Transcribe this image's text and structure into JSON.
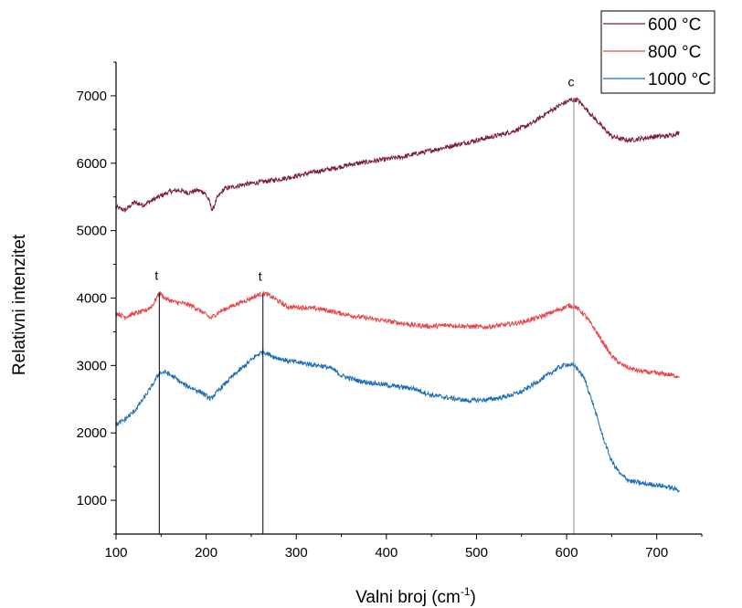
{
  "chart_data": {
    "type": "line",
    "xlabel": "Valni broj (cm",
    "xlabel_sup": "-1",
    "xlabel_close": ")",
    "ylabel": "Relativni intenzitet",
    "xlim": [
      100,
      750
    ],
    "ylim": [
      500,
      7500
    ],
    "xticks": [
      100,
      200,
      300,
      400,
      500,
      600,
      700
    ],
    "yticks": [
      1000,
      2000,
      3000,
      4000,
      5000,
      6000,
      7000
    ],
    "grid": false,
    "legend_position": "top-right",
    "series": [
      {
        "name": "600 °C",
        "color": "#7b1e3a",
        "points": [
          [
            100,
            5350
          ],
          [
            110,
            5300
          ],
          [
            120,
            5420
          ],
          [
            130,
            5380
          ],
          [
            140,
            5450
          ],
          [
            150,
            5520
          ],
          [
            160,
            5580
          ],
          [
            170,
            5600
          ],
          [
            180,
            5560
          ],
          [
            190,
            5600
          ],
          [
            198,
            5570
          ],
          [
            203,
            5450
          ],
          [
            207,
            5300
          ],
          [
            212,
            5480
          ],
          [
            220,
            5620
          ],
          [
            240,
            5680
          ],
          [
            260,
            5720
          ],
          [
            280,
            5760
          ],
          [
            300,
            5810
          ],
          [
            320,
            5870
          ],
          [
            340,
            5920
          ],
          [
            360,
            5980
          ],
          [
            380,
            6020
          ],
          [
            400,
            6060
          ],
          [
            420,
            6100
          ],
          [
            440,
            6160
          ],
          [
            460,
            6220
          ],
          [
            480,
            6280
          ],
          [
            500,
            6340
          ],
          [
            520,
            6400
          ],
          [
            540,
            6470
          ],
          [
            560,
            6580
          ],
          [
            580,
            6760
          ],
          [
            595,
            6880
          ],
          [
            605,
            6940
          ],
          [
            612,
            6940
          ],
          [
            620,
            6830
          ],
          [
            630,
            6680
          ],
          [
            640,
            6530
          ],
          [
            650,
            6400
          ],
          [
            660,
            6360
          ],
          [
            670,
            6340
          ],
          [
            680,
            6360
          ],
          [
            690,
            6380
          ],
          [
            700,
            6400
          ],
          [
            710,
            6400
          ],
          [
            720,
            6430
          ],
          [
            725,
            6450
          ]
        ]
      },
      {
        "name": "800 °C",
        "color": "#e8474b",
        "points": [
          [
            100,
            3780
          ],
          [
            110,
            3720
          ],
          [
            120,
            3770
          ],
          [
            130,
            3800
          ],
          [
            140,
            3880
          ],
          [
            148,
            4080
          ],
          [
            155,
            3990
          ],
          [
            165,
            3940
          ],
          [
            175,
            3920
          ],
          [
            185,
            3880
          ],
          [
            195,
            3800
          ],
          [
            205,
            3700
          ],
          [
            215,
            3800
          ],
          [
            230,
            3890
          ],
          [
            245,
            3970
          ],
          [
            258,
            4050
          ],
          [
            265,
            4070
          ],
          [
            275,
            4000
          ],
          [
            290,
            3870
          ],
          [
            310,
            3860
          ],
          [
            330,
            3830
          ],
          [
            350,
            3770
          ],
          [
            370,
            3720
          ],
          [
            390,
            3680
          ],
          [
            410,
            3640
          ],
          [
            430,
            3600
          ],
          [
            450,
            3580
          ],
          [
            470,
            3600
          ],
          [
            490,
            3580
          ],
          [
            510,
            3570
          ],
          [
            530,
            3600
          ],
          [
            550,
            3640
          ],
          [
            570,
            3720
          ],
          [
            590,
            3820
          ],
          [
            603,
            3890
          ],
          [
            610,
            3870
          ],
          [
            620,
            3750
          ],
          [
            630,
            3560
          ],
          [
            640,
            3350
          ],
          [
            650,
            3140
          ],
          [
            660,
            3020
          ],
          [
            670,
            2960
          ],
          [
            680,
            2920
          ],
          [
            695,
            2890
          ],
          [
            710,
            2870
          ],
          [
            725,
            2840
          ]
        ]
      },
      {
        "name": "1000 °C",
        "color": "#1f6fb4",
        "points": [
          [
            100,
            2120
          ],
          [
            110,
            2200
          ],
          [
            120,
            2320
          ],
          [
            130,
            2500
          ],
          [
            140,
            2700
          ],
          [
            148,
            2890
          ],
          [
            155,
            2900
          ],
          [
            165,
            2820
          ],
          [
            175,
            2720
          ],
          [
            185,
            2660
          ],
          [
            195,
            2600
          ],
          [
            205,
            2500
          ],
          [
            215,
            2650
          ],
          [
            230,
            2850
          ],
          [
            245,
            3020
          ],
          [
            255,
            3140
          ],
          [
            263,
            3210
          ],
          [
            275,
            3130
          ],
          [
            290,
            3070
          ],
          [
            310,
            3030
          ],
          [
            330,
            2990
          ],
          [
            340,
            2950
          ],
          [
            350,
            2850
          ],
          [
            370,
            2770
          ],
          [
            390,
            2730
          ],
          [
            410,
            2690
          ],
          [
            430,
            2660
          ],
          [
            450,
            2560
          ],
          [
            470,
            2520
          ],
          [
            490,
            2480
          ],
          [
            510,
            2490
          ],
          [
            530,
            2530
          ],
          [
            550,
            2610
          ],
          [
            570,
            2780
          ],
          [
            590,
            2960
          ],
          [
            600,
            3020
          ],
          [
            610,
            2990
          ],
          [
            620,
            2800
          ],
          [
            630,
            2400
          ],
          [
            640,
            1950
          ],
          [
            650,
            1580
          ],
          [
            660,
            1380
          ],
          [
            670,
            1290
          ],
          [
            680,
            1260
          ],
          [
            690,
            1240
          ],
          [
            700,
            1230
          ],
          [
            715,
            1190
          ],
          [
            725,
            1150
          ]
        ]
      }
    ],
    "reference_lines": [
      {
        "x": 148,
        "label": "t",
        "color": "#000000"
      },
      {
        "x": 263,
        "label": "t",
        "color": "#000000"
      },
      {
        "x": 608,
        "label": "c",
        "color": "#8a8a8a"
      }
    ],
    "reference_line_bottom": 500,
    "reference_line_tops": [
      4080,
      4070,
      6950
    ]
  }
}
